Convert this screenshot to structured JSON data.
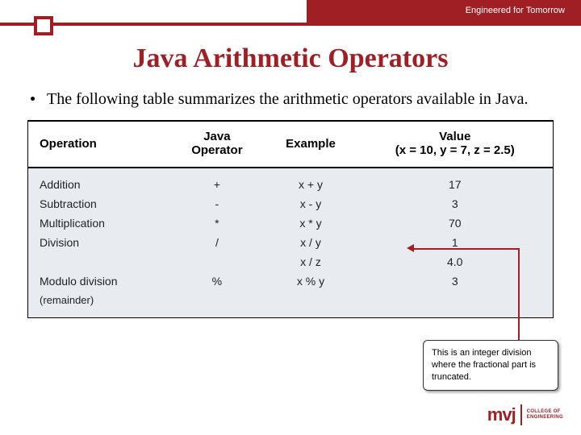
{
  "header": {
    "tagline": "Engineered for Tomorrow",
    "title": "Java Arithmetic Operators"
  },
  "intro": "The following table summarizes the arithmetic operators available in Java.",
  "table": {
    "columns": [
      "Operation",
      "Java\nOperator",
      "Example",
      "Value\n(x = 10, y = 7, z = 2.5)"
    ],
    "col0": "Operation",
    "col1a": "Java",
    "col1b": "Operator",
    "col2": "Example",
    "col3a": "Value",
    "col3b": "(x = 10, y = 7, z = 2.5)",
    "rows": [
      {
        "op": "Addition",
        "sym": "+",
        "ex": "x + y",
        "val": "17"
      },
      {
        "op": "Subtraction",
        "sym": "-",
        "ex": "x - y",
        "val": "3"
      },
      {
        "op": "Multiplication",
        "sym": "*",
        "ex": "x * y",
        "val": "70"
      },
      {
        "op": "Division",
        "sym": "/",
        "ex": "x / y",
        "val": "1"
      },
      {
        "op": "",
        "sym": "",
        "ex": "x / z",
        "val": "4.0"
      },
      {
        "op": "Modulo division",
        "sym": "%",
        "ex": "x % y",
        "val": "3"
      },
      {
        "op": "(remainder)",
        "sym": "",
        "ex": "",
        "val": ""
      }
    ]
  },
  "callout": "This is an integer division where the fractional part is truncated.",
  "logo": {
    "mark": "mvj",
    "line1": "COLLEGE OF",
    "line2": "ENGINEERING"
  },
  "colors": {
    "brand": "#a01f24",
    "table_bg": "#e8ecf1",
    "text": "#000000"
  }
}
